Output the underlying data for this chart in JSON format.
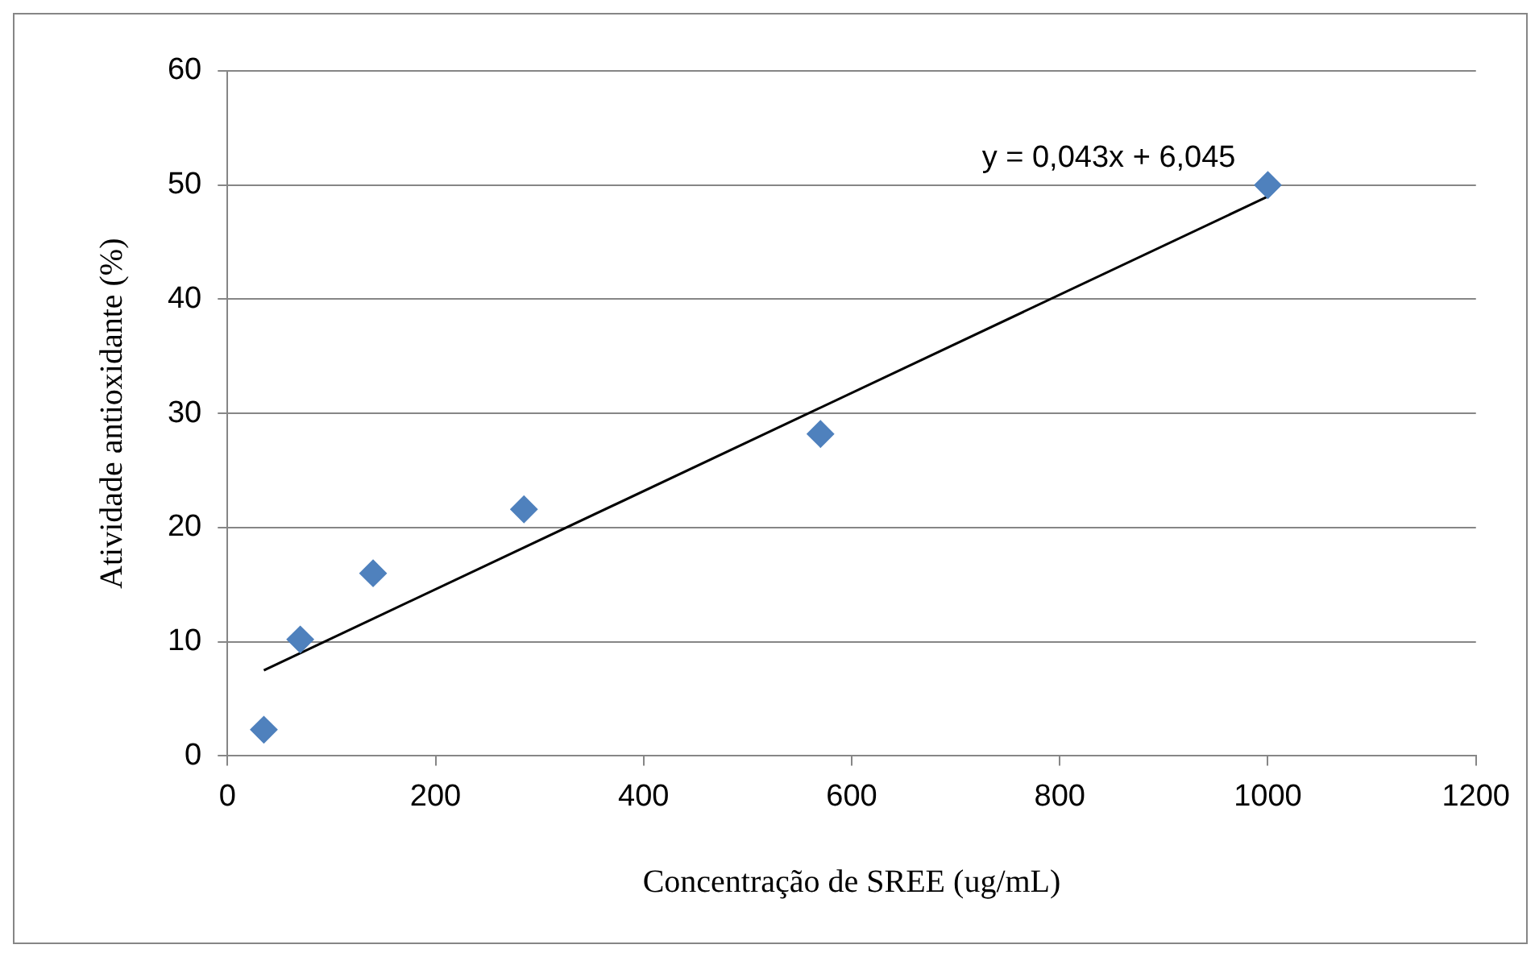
{
  "chart_data": {
    "type": "scatter",
    "xlabel": "Concentração de SREE (ug/mL)",
    "ylabel": "Atividade antioxidante (%)",
    "x": [
      35,
      70,
      140,
      285,
      570,
      1000
    ],
    "series": [
      {
        "color": "#4f81bd",
        "marker": "diamond",
        "values": [
          2.3,
          10.2,
          16.0,
          21.6,
          28.2,
          50.0
        ]
      },
      {
        "type": "line",
        "color": "#000000",
        "x": [
          35,
          1000
        ],
        "values": [
          7.5,
          49.0
        ]
      }
    ],
    "xlim": [
      0,
      1200
    ],
    "xticks": [
      0,
      200,
      400,
      600,
      800,
      1000,
      1200
    ],
    "ylim": [
      0,
      60
    ],
    "yticks": [
      0,
      10,
      20,
      30,
      40,
      50,
      60
    ],
    "grid": "y",
    "legend": false,
    "annotations": [
      "y = 0,043x + 6,045"
    ]
  }
}
